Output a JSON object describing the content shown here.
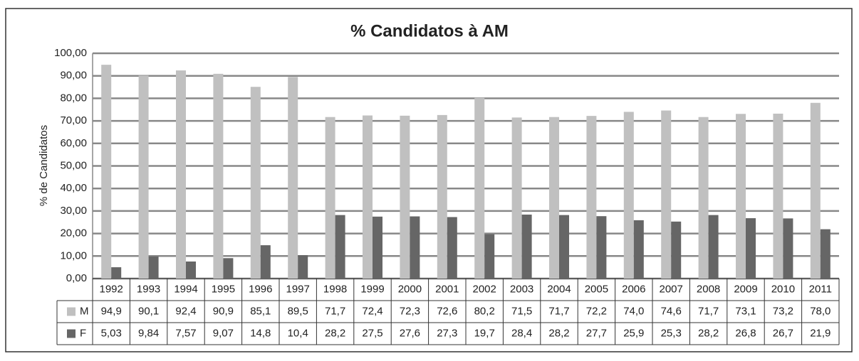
{
  "chart_data": {
    "type": "bar",
    "title": "% Candidatos à AM",
    "y_label": "% de Candidatos",
    "categories": [
      "1992",
      "1993",
      "1994",
      "1995",
      "1996",
      "1997",
      "1998",
      "1999",
      "2000",
      "2001",
      "2002",
      "2003",
      "2004",
      "2005",
      "2006",
      "2007",
      "2008",
      "2009",
      "2010",
      "2011"
    ],
    "series": [
      {
        "name": "M",
        "color": "#c0c0c0",
        "values": [
          94.9,
          90.1,
          92.4,
          90.9,
          85.1,
          89.5,
          71.7,
          72.4,
          72.3,
          72.6,
          80.2,
          71.5,
          71.7,
          72.2,
          74.0,
          74.6,
          71.7,
          73.1,
          73.2,
          78.0
        ],
        "value_labels": [
          "94,9",
          "90,1",
          "92,4",
          "90,9",
          "85,1",
          "89,5",
          "71,7",
          "72,4",
          "72,3",
          "72,6",
          "80,2",
          "71,5",
          "71,7",
          "72,2",
          "74,0",
          "74,6",
          "71,7",
          "73,1",
          "73,2",
          "78,0"
        ]
      },
      {
        "name": "F",
        "color": "#666666",
        "values": [
          5.03,
          9.84,
          7.57,
          9.07,
          14.8,
          10.4,
          28.2,
          27.5,
          27.6,
          27.3,
          19.7,
          28.4,
          28.2,
          27.7,
          25.9,
          25.3,
          28.2,
          26.8,
          26.7,
          21.9
        ],
        "value_labels": [
          "5,03",
          "9,84",
          "7,57",
          "9,07",
          "14,8",
          "10,4",
          "28,2",
          "27,5",
          "27,6",
          "27,3",
          "19,7",
          "28,4",
          "28,2",
          "27,7",
          "25,9",
          "25,3",
          "28,2",
          "26,8",
          "26,7",
          "21,9"
        ]
      }
    ],
    "ylim": [
      0,
      100
    ],
    "yticks": [
      {
        "value": 0,
        "label": "0,00"
      },
      {
        "value": 10,
        "label": "10,00"
      },
      {
        "value": 20,
        "label": "20,00"
      },
      {
        "value": 30,
        "label": "30,00"
      },
      {
        "value": 40,
        "label": "40,00"
      },
      {
        "value": 50,
        "label": "50,00"
      },
      {
        "value": 60,
        "label": "60,00"
      },
      {
        "value": 70,
        "label": "70,00"
      },
      {
        "value": 80,
        "label": "80,00"
      },
      {
        "value": 90,
        "label": "90,00"
      },
      {
        "value": 100,
        "label": "100,00"
      }
    ],
    "grid": true
  }
}
